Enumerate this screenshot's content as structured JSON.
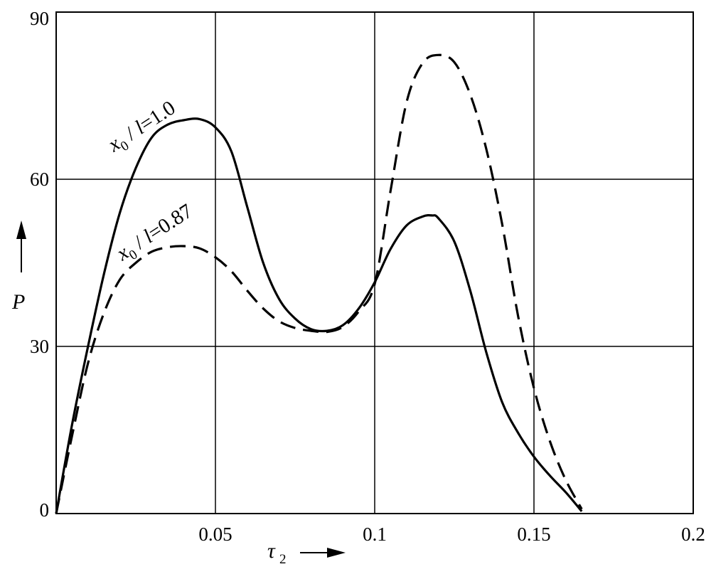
{
  "chart_data": {
    "type": "line",
    "title": "",
    "xlabel": "τ",
    "xlabel_subscript": "2",
    "ylabel": "P",
    "xlim": [
      0,
      0.2
    ],
    "ylim": [
      0,
      90
    ],
    "x_ticks": [
      0.05,
      0.1,
      0.15,
      0.2
    ],
    "x_tick_labels": [
      "0.05",
      "0.1",
      "0.15",
      "0.2"
    ],
    "y_ticks": [
      0,
      30,
      60,
      90
    ],
    "y_tick_labels": [
      "0",
      "30",
      "60",
      "90"
    ],
    "grid": true,
    "legend": "none",
    "series": [
      {
        "name": "x0 / l=1.0",
        "label_parts": [
          "x",
          "0",
          " / ",
          "l",
          "=1.0"
        ],
        "style": "solid",
        "x": [
          0,
          0.005,
          0.01,
          0.015,
          0.02,
          0.025,
          0.03,
          0.035,
          0.04,
          0.045,
          0.05,
          0.055,
          0.06,
          0.065,
          0.07,
          0.075,
          0.08,
          0.085,
          0.09,
          0.095,
          0.1,
          0.105,
          0.11,
          0.115,
          0.118,
          0.12,
          0.125,
          0.13,
          0.135,
          0.14,
          0.145,
          0.15,
          0.155,
          0.16,
          0.165
        ],
        "y": [
          0,
          16,
          30,
          43,
          54,
          62,
          67.5,
          69.8,
          70.6,
          70.8,
          69.3,
          65,
          55,
          45,
          38.5,
          35,
          33.1,
          32.8,
          33.8,
          36.8,
          41.5,
          47.5,
          51.7,
          53.3,
          53.5,
          53,
          48.8,
          40,
          29,
          20,
          14.5,
          10.2,
          6.8,
          3.8,
          0.4
        ]
      },
      {
        "name": "x0 / l=0.87",
        "label_parts": [
          "x",
          "0",
          " / ",
          "l",
          "=0.87"
        ],
        "style": "dashed",
        "x": [
          0,
          0.005,
          0.01,
          0.015,
          0.02,
          0.025,
          0.03,
          0.035,
          0.04,
          0.045,
          0.05,
          0.055,
          0.06,
          0.065,
          0.07,
          0.075,
          0.08,
          0.085,
          0.09,
          0.095,
          0.1,
          0.105,
          0.11,
          0.115,
          0.12,
          0.125,
          0.13,
          0.135,
          0.14,
          0.145,
          0.15,
          0.155,
          0.16,
          0.165
        ],
        "y": [
          0,
          14,
          27,
          36,
          42,
          45,
          47,
          47.8,
          48,
          47.6,
          46,
          43.5,
          40,
          36.8,
          34.5,
          33.3,
          32.8,
          32.6,
          33.5,
          36.3,
          41.2,
          58,
          73.8,
          80.8,
          82.3,
          81,
          75.2,
          65.5,
          52,
          35.5,
          22.5,
          13,
          6,
          0.8
        ]
      }
    ]
  }
}
